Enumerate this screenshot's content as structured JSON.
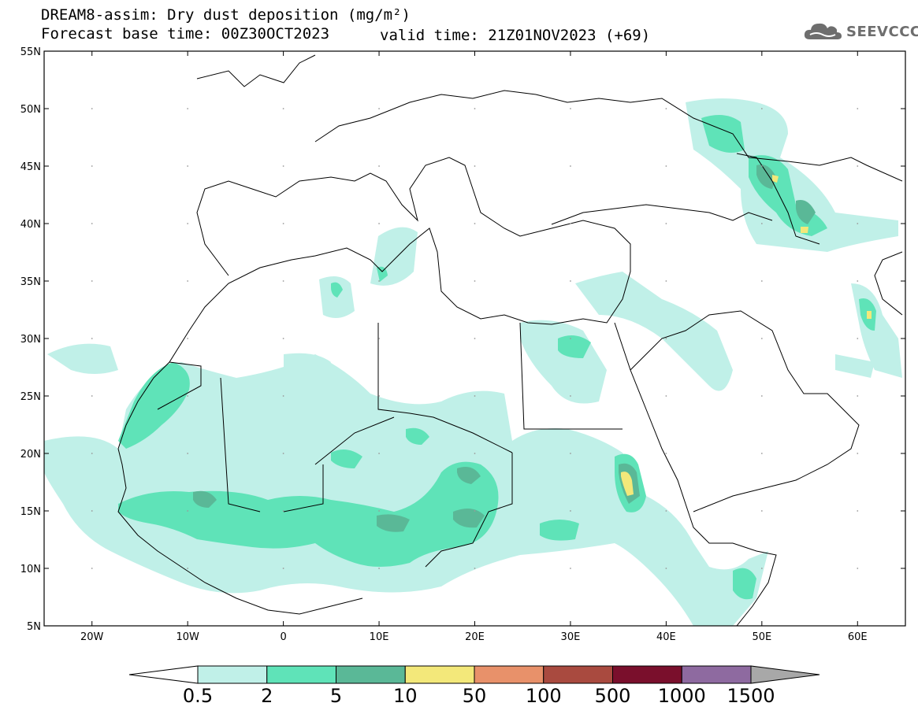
{
  "header": {
    "title_line1": "DREAM8-assim: Dry dust deposition (mg/m²)",
    "title_line2": "Forecast base time: 00Z30OCT2023",
    "valid_time": "valid time: 21Z01NOV2023 (+69)",
    "logo_text": "SEEVCCC",
    "logo_icon": "cloud-icon"
  },
  "map": {
    "lon_range": [
      -25,
      65
    ],
    "lat_range": [
      5,
      55
    ],
    "lon_ticks": [
      {
        "value": -20,
        "label": "20W"
      },
      {
        "value": -10,
        "label": "10W"
      },
      {
        "value": 0,
        "label": "0"
      },
      {
        "value": 10,
        "label": "10E"
      },
      {
        "value": 20,
        "label": "20E"
      },
      {
        "value": 30,
        "label": "30E"
      },
      {
        "value": 40,
        "label": "40E"
      },
      {
        "value": 50,
        "label": "50E"
      },
      {
        "value": 60,
        "label": "60E"
      }
    ],
    "lat_ticks": [
      {
        "value": 55,
        "label": "55N"
      },
      {
        "value": 50,
        "label": "50N"
      },
      {
        "value": 45,
        "label": "45N"
      },
      {
        "value": 40,
        "label": "40N"
      },
      {
        "value": 35,
        "label": "35N"
      },
      {
        "value": 30,
        "label": "30N"
      },
      {
        "value": 25,
        "label": "25N"
      },
      {
        "value": 20,
        "label": "20N"
      },
      {
        "value": 15,
        "label": "15N"
      },
      {
        "value": 10,
        "label": "10N"
      },
      {
        "value": 5,
        "label": "5N"
      }
    ]
  },
  "colorbar": {
    "labels": [
      "0.5",
      "2",
      "5",
      "10",
      "50",
      "100",
      "500",
      "1000",
      "1500"
    ],
    "colors": [
      "#c0f0e8",
      "#5fe3b8",
      "#5ab897",
      "#f3e87a",
      "#e8916a",
      "#a94a3f",
      "#7a0f2c",
      "#8e6aa0"
    ],
    "under_color": "#ffffff",
    "over_color": "#a8a8a8"
  }
}
